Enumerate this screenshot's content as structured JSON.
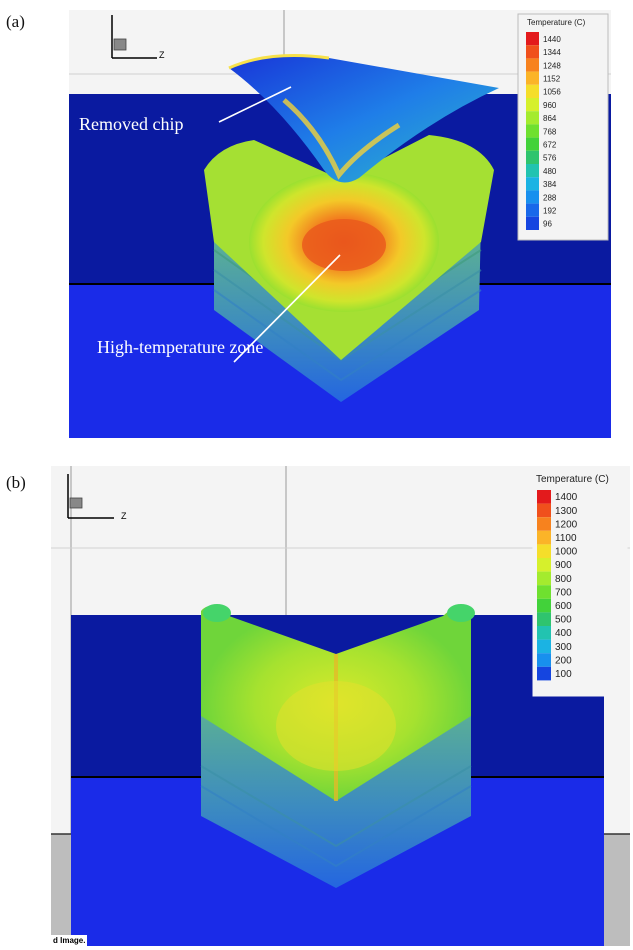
{
  "panel_a": {
    "label": "(a)",
    "axis_label": "Z",
    "legend_title": "Temperature (C)",
    "legend_ticks": [
      "1440",
      "1344",
      "1248",
      "1152",
      "1056",
      "960",
      "864",
      "768",
      "672",
      "576",
      "480",
      "384",
      "288",
      "192",
      "96"
    ],
    "legend_colors": [
      "#e31a1c",
      "#f0501c",
      "#f7821e",
      "#fbb428",
      "#f5de2a",
      "#d6f02c",
      "#a4eb2e",
      "#6fe02f",
      "#42d23a",
      "#2fc46e",
      "#22c3b0",
      "#1bb3e3",
      "#1890ee",
      "#1868ea",
      "#1545e0"
    ],
    "callouts": [
      {
        "text": "Removed chip"
      },
      {
        "text": "High-temperature zone"
      }
    ]
  },
  "panel_b": {
    "label": "(b)",
    "axis_label": "Z",
    "legend_title": "Temperature (C)",
    "legend_ticks": [
      "1400",
      "1300",
      "1200",
      "1100",
      "1000",
      "900",
      "800",
      "700",
      "600",
      "500",
      "400",
      "300",
      "200",
      "100"
    ],
    "legend_colors": [
      "#e31a1c",
      "#f0501c",
      "#f7821e",
      "#fbb428",
      "#f5de2a",
      "#d6f02c",
      "#a4eb2e",
      "#6fe02f",
      "#42d23a",
      "#2fc46e",
      "#22c3b0",
      "#1bb3e3",
      "#1890ee",
      "#1545e0"
    ],
    "footer_tag": "d Image."
  },
  "colors": {
    "workpiece_dark": "#0a1aa0",
    "workpiece_bright": "#1a2be8",
    "grid_line": "#9a9a9a",
    "ground_gray": "#bdbdbd"
  }
}
